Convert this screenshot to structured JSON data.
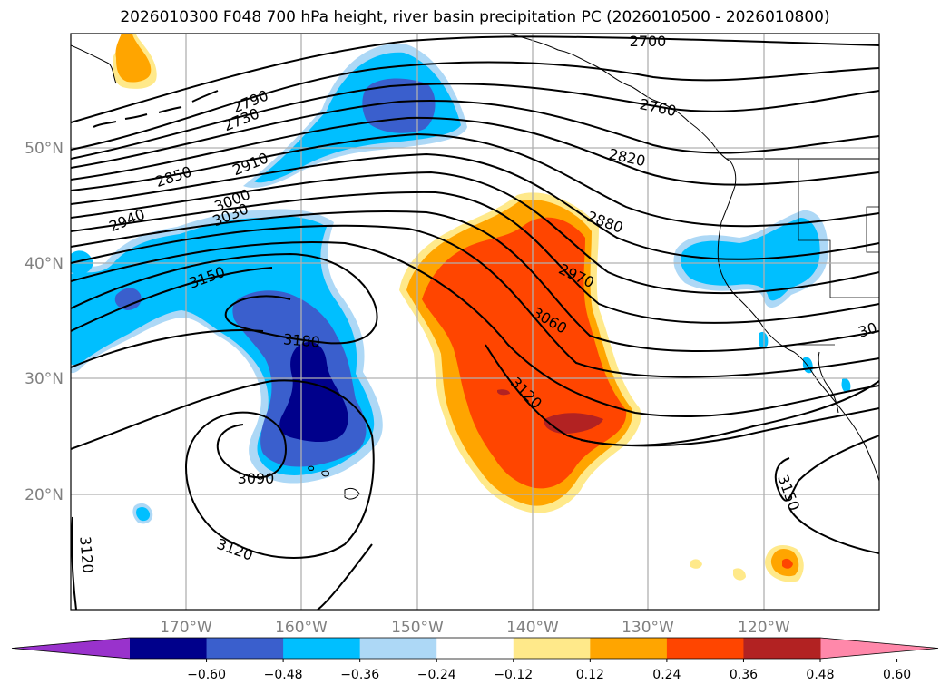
{
  "title": "2026010300 F048 700 hPa height, river basin precipitation PC (2026010500 - 2026010800)",
  "lat_labels": [
    "50°N",
    "40°N",
    "30°N",
    "20°N"
  ],
  "lon_labels": [
    "170°W",
    "160°W",
    "150°W",
    "140°W",
    "130°W",
    "120°W"
  ],
  "contour_labels": [
    "2700",
    "2760",
    "2790",
    "2730",
    "2820",
    "2850",
    "2910",
    "2880",
    "2940",
    "3000",
    "3030",
    "2970",
    "3060",
    "3150",
    "3180",
    "3120",
    "3090",
    "3120",
    "3120",
    "3150",
    "30"
  ],
  "colorbar": {
    "ticks": [
      "−0.60",
      "−0.48",
      "−0.36",
      "−0.24",
      "−0.12",
      "0.12",
      "0.24",
      "0.36",
      "0.48",
      "0.60"
    ],
    "colors": [
      "#9932cc",
      "#00008b",
      "#3a5fcd",
      "#00bfff",
      "#add8f6",
      "#ffffff",
      "#ffe98a",
      "#ffa500",
      "#ff4500",
      "#b22222",
      "#ff88aa"
    ]
  },
  "colors": {
    "very_negative": "#00008b",
    "negative": "#3a5fcd",
    "moderate_negative": "#00bfff",
    "weak_negative": "#add8f6",
    "weak_positive": "#ffe98a",
    "moderate_positive": "#ffa500",
    "positive": "#ff4500",
    "very_positive": "#b22222"
  }
}
